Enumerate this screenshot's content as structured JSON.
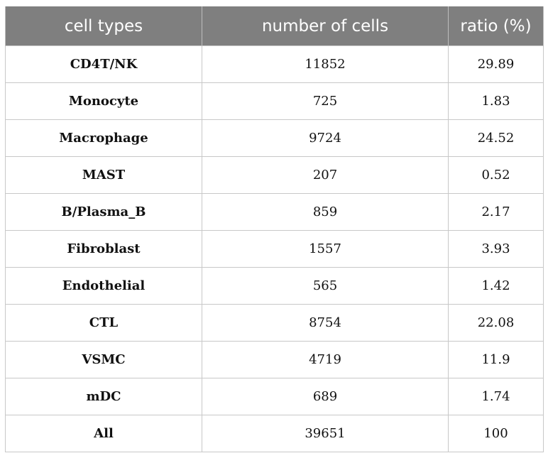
{
  "table": {
    "headers": {
      "cell_types": "cell types",
      "number_of_cells": "number of cells",
      "ratio": "ratio (%)"
    },
    "rows": [
      {
        "type": "CD4T/NK",
        "count": "11852",
        "ratio": "29.89"
      },
      {
        "type": "Monocyte",
        "count": "725",
        "ratio": "1.83"
      },
      {
        "type": "Macrophage",
        "count": "9724",
        "ratio": "24.52"
      },
      {
        "type": "MAST",
        "count": "207",
        "ratio": "0.52"
      },
      {
        "type": "B/Plasma_B",
        "count": "859",
        "ratio": "2.17"
      },
      {
        "type": "Fibroblast",
        "count": "1557",
        "ratio": "3.93"
      },
      {
        "type": "Endothelial",
        "count": "565",
        "ratio": "1.42"
      },
      {
        "type": "CTL",
        "count": "8754",
        "ratio": "22.08"
      },
      {
        "type": "VSMC",
        "count": "4719",
        "ratio": "11.9"
      },
      {
        "type": "mDC",
        "count": "689",
        "ratio": "1.74"
      },
      {
        "type": "All",
        "count": "39651",
        "ratio": "100"
      }
    ]
  },
  "colors": {
    "header_bg": "#7f7f7f",
    "header_text": "#ffffff",
    "grid": "#c8c8c8"
  }
}
